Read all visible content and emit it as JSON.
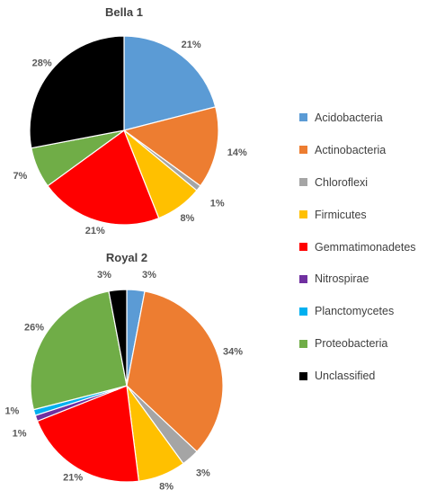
{
  "chart_data": [
    {
      "type": "pie",
      "title": "Bella 1",
      "slices": [
        {
          "name": "Acidobacteria",
          "value": 21,
          "label": "21%"
        },
        {
          "name": "Actinobacteria",
          "value": 14,
          "label": "14%"
        },
        {
          "name": "Chloroflexi",
          "value": 1,
          "label": "1%"
        },
        {
          "name": "Firmicutes",
          "value": 8,
          "label": "8%"
        },
        {
          "name": "Gemmatimonadetes",
          "value": 21,
          "label": "21%"
        },
        {
          "name": "Proteobacteria",
          "value": 7,
          "label": "7%"
        },
        {
          "name": "Unclassified",
          "value": 28,
          "label": "28%"
        }
      ]
    },
    {
      "type": "pie",
      "title": "Royal 2",
      "slices": [
        {
          "name": "Acidobacteria",
          "value": 3,
          "label": "3%"
        },
        {
          "name": "Actinobacteria",
          "value": 34,
          "label": "34%"
        },
        {
          "name": "Chloroflexi",
          "value": 3,
          "label": "3%"
        },
        {
          "name": "Firmicutes",
          "value": 8,
          "label": "8%"
        },
        {
          "name": "Gemmatimonadetes",
          "value": 21,
          "label": "21%"
        },
        {
          "name": "Nitrospirae",
          "value": 1,
          "label": "1%"
        },
        {
          "name": "Planctomycetes",
          "value": 1,
          "label": "1%"
        },
        {
          "name": "Proteobacteria",
          "value": 26,
          "label": "26%"
        },
        {
          "name": "Unclassified",
          "value": 3,
          "label": "3%"
        }
      ]
    }
  ],
  "legend": {
    "placement": "right",
    "entries": [
      {
        "name": "Acidobacteria",
        "color": "#5B9BD5"
      },
      {
        "name": "Actinobacteria",
        "color": "#ED7D31"
      },
      {
        "name": "Chloroflexi",
        "color": "#A5A5A5"
      },
      {
        "name": "Firmicutes",
        "color": "#FFC000"
      },
      {
        "name": "Gemmatimonadetes",
        "color": "#FF0000"
      },
      {
        "name": "Nitrospirae",
        "color": "#7030A0"
      },
      {
        "name": "Planctomycetes",
        "color": "#00B0F0"
      },
      {
        "name": "Proteobacteria",
        "color": "#70AD47"
      },
      {
        "name": "Unclassified",
        "color": "#000000"
      }
    ]
  }
}
